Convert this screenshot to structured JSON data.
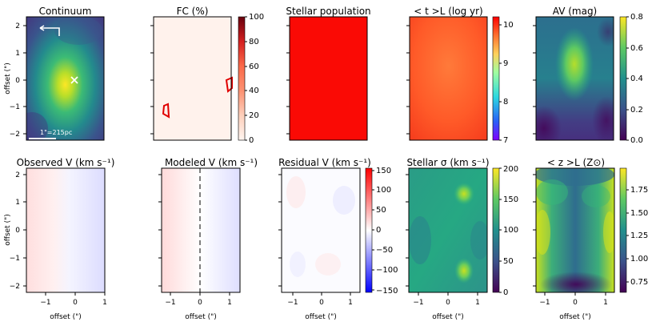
{
  "chart_data": [
    {
      "id": "continuum",
      "type": "heatmap",
      "title": "Continuum",
      "map": "continuum",
      "ylabel": "offset (\")",
      "yticks": [
        "2",
        "1",
        "0",
        "−1",
        "−2"
      ],
      "scalebar_label": "1\"=215pc"
    },
    {
      "id": "fc",
      "type": "heatmap",
      "title": "FC (%)",
      "map": "fc",
      "colorbar": {
        "min": 0,
        "max": 100,
        "ticks": [
          "0",
          "20",
          "40",
          "60",
          "80",
          "100"
        ],
        "cmap": "reds"
      }
    },
    {
      "id": "stellar_population",
      "type": "heatmap",
      "title": "Stellar population",
      "map": "stellar"
    },
    {
      "id": "age",
      "type": "heatmap",
      "title": "< t >L (log yr)",
      "map": "age",
      "colorbar": {
        "min": 7,
        "max": 10.2,
        "ticks": [
          "7",
          "8",
          "9",
          "10"
        ],
        "cmap": "rainbow"
      }
    },
    {
      "id": "av",
      "type": "heatmap",
      "title": "AV (mag)",
      "map": "av",
      "colorbar": {
        "min": 0,
        "max": 0.8,
        "ticks": [
          "0.0",
          "0.2",
          "0.4",
          "0.6",
          "0.8"
        ],
        "cmap": "viridis"
      }
    },
    {
      "id": "observed_v",
      "type": "heatmap",
      "title": "Observed V (km s⁻¹)",
      "map": "vobs",
      "xlabel": "offset (\")",
      "ylabel": "offset (\")",
      "xticks": [
        "−1",
        "0",
        "1"
      ],
      "yticks": [
        "2",
        "1",
        "0",
        "−1",
        "−2"
      ]
    },
    {
      "id": "modeled_v",
      "type": "heatmap",
      "title": "Modeled V (km s⁻¹)",
      "map": "vmod",
      "xlabel": "offset (\")",
      "xticks": [
        "−1",
        "0",
        "1"
      ]
    },
    {
      "id": "residual_v",
      "type": "heatmap",
      "title": "Residual V (km s⁻¹)",
      "map": "vres",
      "xlabel": "offset (\")",
      "xticks": [
        "−1",
        "0",
        "1"
      ],
      "colorbar": {
        "min": -150,
        "max": 150,
        "ticks": [
          "150",
          "100",
          "50",
          "0",
          "−50",
          "−100",
          "−150"
        ],
        "cmap": "bwr"
      }
    },
    {
      "id": "stellar_sigma",
      "type": "heatmap",
      "title": "Stellar σ (km s⁻¹)",
      "map": "sigma",
      "xlabel": "offset (\")",
      "xticks": [
        "−1",
        "0",
        "1"
      ],
      "colorbar": {
        "min": 0,
        "max": 200,
        "ticks": [
          "0",
          "50",
          "100",
          "150",
          "200"
        ],
        "cmap": "viridis"
      }
    },
    {
      "id": "metallicity",
      "type": "heatmap",
      "title": "< z >L (Z⊙)",
      "map": "z",
      "xlabel": "offset (\")",
      "xticks": [
        "−1",
        "0",
        "1"
      ],
      "colorbar": {
        "min": 0.6,
        "max": 1.95,
        "ticks": [
          "0.75",
          "1.00",
          "1.25",
          "1.50",
          "1.75"
        ],
        "cmap": "viridis"
      }
    }
  ]
}
